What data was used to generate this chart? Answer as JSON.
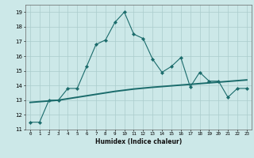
{
  "title": "",
  "xlabel": "Humidex (Indice chaleur)",
  "bg_color": "#cce8e8",
  "grid_color": "#aacccc",
  "line_color": "#1a6b6b",
  "xlim": [
    -0.5,
    23.5
  ],
  "ylim": [
    11,
    19.5
  ],
  "yticks": [
    11,
    12,
    13,
    14,
    15,
    16,
    17,
    18,
    19
  ],
  "xticks": [
    0,
    1,
    2,
    3,
    4,
    5,
    6,
    7,
    8,
    9,
    10,
    11,
    12,
    13,
    14,
    15,
    16,
    17,
    18,
    19,
    20,
    21,
    22,
    23
  ],
  "jagged_x": [
    0,
    1,
    2,
    3,
    4,
    5,
    6,
    7,
    8,
    9,
    10,
    11,
    12,
    13,
    14,
    15,
    16,
    17,
    18,
    19,
    20,
    21,
    22,
    23
  ],
  "jagged_y": [
    11.5,
    11.5,
    13.0,
    13.0,
    13.8,
    13.8,
    15.3,
    16.8,
    17.1,
    18.3,
    19.0,
    17.5,
    17.2,
    15.8,
    14.9,
    15.3,
    15.9,
    13.9,
    14.9,
    14.3,
    14.3,
    13.2,
    13.8,
    13.8
  ],
  "smooth_x": [
    0,
    1,
    2,
    3,
    4,
    5,
    6,
    7,
    8,
    9,
    10,
    11,
    12,
    13,
    14,
    15,
    16,
    17,
    18,
    19,
    20,
    21,
    22,
    23
  ],
  "smooth_y": [
    12.85,
    12.9,
    12.95,
    13.0,
    13.1,
    13.2,
    13.3,
    13.4,
    13.5,
    13.6,
    13.68,
    13.76,
    13.82,
    13.88,
    13.93,
    13.98,
    14.03,
    14.08,
    14.13,
    14.18,
    14.23,
    14.28,
    14.33,
    14.38
  ],
  "smooth_markers_x": [
    0,
    5,
    10,
    15,
    20
  ],
  "smooth_markers_y": [
    12.85,
    13.2,
    13.68,
    13.98,
    14.23
  ]
}
